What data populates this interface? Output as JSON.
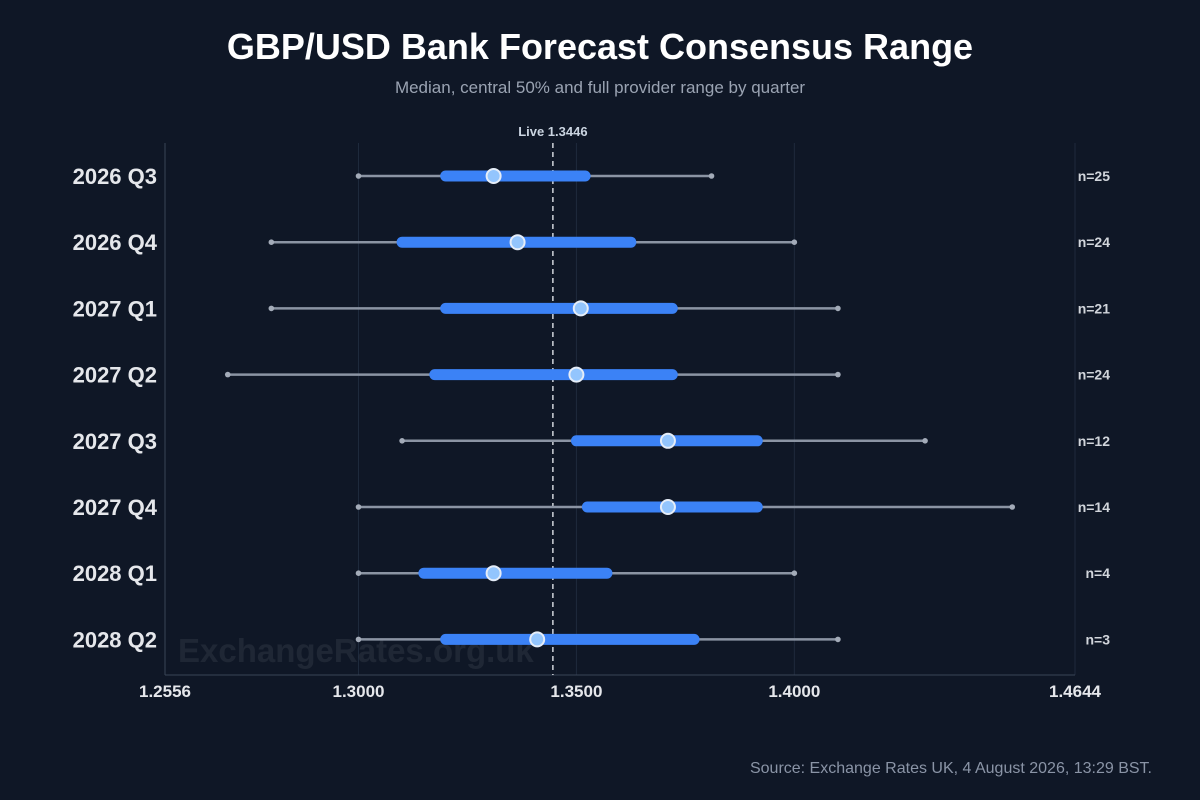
{
  "header": {
    "title": "GBP/USD Bank Forecast Consensus Range",
    "subtitle": "Median, central 50% and full provider range by quarter"
  },
  "watermark": "ExchangeRates.org.uk",
  "footer": {
    "source": "Source: Exchange Rates UK, 4 August 2026, 13:29 BST."
  },
  "colors": {
    "background": "#0f1726",
    "iqr": "#3b82f6",
    "range": "#8b94a3",
    "median_fill": "#93c5fd",
    "live_line": "#d1d5db"
  },
  "chart_data": {
    "type": "range",
    "title": "GBP/USD Bank Forecast Consensus Range",
    "subtitle": "Median, central 50% and full provider range by quarter",
    "xlim": [
      1.2556,
      1.4644
    ],
    "xticks": [
      1.2556,
      1.3,
      1.35,
      1.4,
      1.4644
    ],
    "xtick_labels": [
      "1.2556",
      "1.3000",
      "1.3500",
      "1.4000",
      "1.4644"
    ],
    "grid_x": true,
    "live": {
      "value": 1.3446,
      "label": "Live 1.3446"
    },
    "categories": [
      "2026 Q3",
      "2026 Q4",
      "2027 Q1",
      "2027 Q2",
      "2027 Q3",
      "2027 Q4",
      "2028 Q1",
      "2028 Q2"
    ],
    "series": [
      {
        "category": "2026 Q3",
        "min": 1.3,
        "q1": 1.32,
        "median": 1.331,
        "q3": 1.352,
        "max": 1.381,
        "n_label": "n=25"
      },
      {
        "category": "2026 Q4",
        "min": 1.28,
        "q1": 1.31,
        "median": 1.3365,
        "q3": 1.3625,
        "max": 1.4,
        "n_label": "n=24"
      },
      {
        "category": "2027 Q1",
        "min": 1.28,
        "q1": 1.32,
        "median": 1.351,
        "q3": 1.372,
        "max": 1.41,
        "n_label": "n=21"
      },
      {
        "category": "2027 Q2",
        "min": 1.27,
        "q1": 1.3175,
        "median": 1.35,
        "q3": 1.372,
        "max": 1.41,
        "n_label": "n=24"
      },
      {
        "category": "2027 Q3",
        "min": 1.31,
        "q1": 1.35,
        "median": 1.371,
        "q3": 1.3915,
        "max": 1.43,
        "n_label": "n=12"
      },
      {
        "category": "2027 Q4",
        "min": 1.3,
        "q1": 1.3525,
        "median": 1.371,
        "q3": 1.3915,
        "max": 1.45,
        "n_label": "n=14"
      },
      {
        "category": "2028 Q1",
        "min": 1.3,
        "q1": 1.315,
        "median": 1.331,
        "q3": 1.357,
        "max": 1.4,
        "n_label": "n=4"
      },
      {
        "category": "2028 Q2",
        "min": 1.3,
        "q1": 1.32,
        "median": 1.341,
        "q3": 1.377,
        "max": 1.41,
        "n_label": "n=3"
      }
    ]
  }
}
